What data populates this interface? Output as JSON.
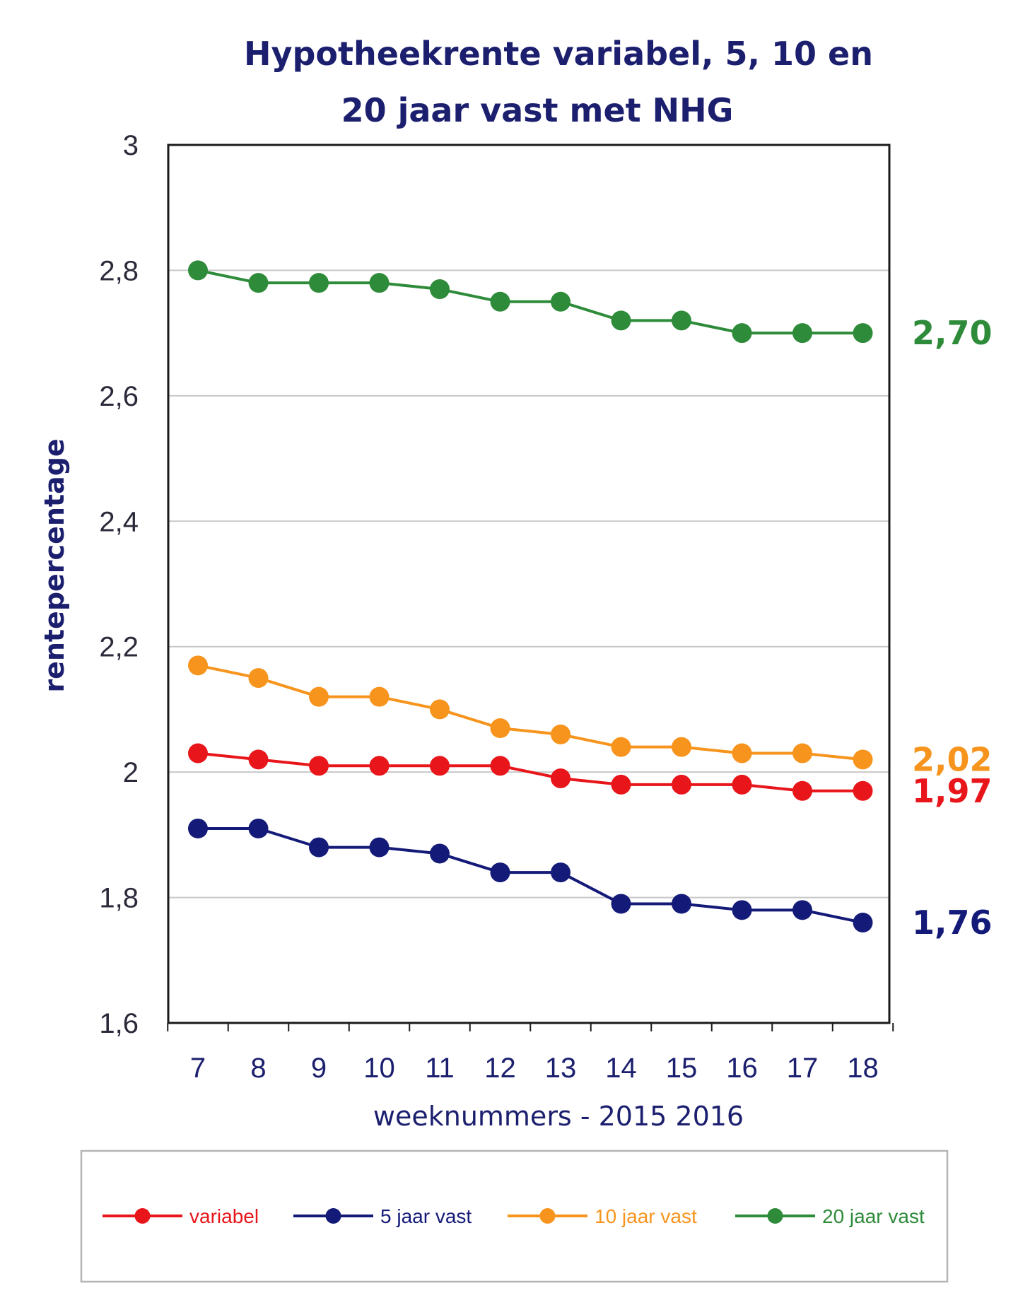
{
  "chart_data": {
    "type": "line",
    "title_lines": [
      "Hypotheekrente variabel, 5, 10 en",
      "20 jaar vast met NHG"
    ],
    "xlabel": "weeknummers - 2015 2016",
    "ylabel": "rentepercentage",
    "x": [
      7,
      8,
      9,
      10,
      11,
      12,
      13,
      14,
      15,
      16,
      17,
      18
    ],
    "ylim": [
      1.6,
      3.0
    ],
    "yticks": [
      "1,6",
      "1,8",
      "2",
      "2,2",
      "2,4",
      "2,6",
      "2,8",
      "3"
    ],
    "grid": true,
    "legend_position": "bottom",
    "series": [
      {
        "name": "variabel",
        "color": "#e8161b",
        "values": [
          2.03,
          2.02,
          2.01,
          2.01,
          2.01,
          2.01,
          1.99,
          1.98,
          1.98,
          1.98,
          1.97,
          1.97
        ],
        "end_label": "1,97"
      },
      {
        "name": "5 jaar vast",
        "color": "#141a78",
        "values": [
          1.91,
          1.91,
          1.88,
          1.88,
          1.87,
          1.84,
          1.84,
          1.79,
          1.79,
          1.78,
          1.78,
          1.76
        ],
        "end_label": "1,76"
      },
      {
        "name": "10 jaar vast",
        "color": "#f7941d",
        "values": [
          2.17,
          2.15,
          2.12,
          2.12,
          2.1,
          2.07,
          2.06,
          2.04,
          2.04,
          2.03,
          2.03,
          2.02
        ],
        "end_label": "2,02"
      },
      {
        "name": "20 jaar vast",
        "color": "#2e8b3a",
        "values": [
          2.8,
          2.78,
          2.78,
          2.78,
          2.77,
          2.75,
          2.75,
          2.72,
          2.72,
          2.7,
          2.7,
          2.7
        ],
        "end_label": "2,70"
      }
    ]
  }
}
